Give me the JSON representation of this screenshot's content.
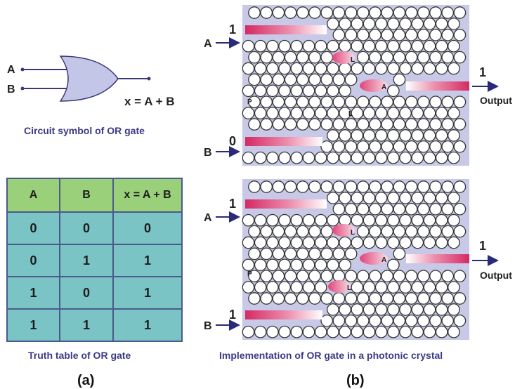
{
  "or_gate": {
    "input_a": "A",
    "input_b": "B",
    "expression": "x = A + B",
    "caption": "Circuit symbol of OR gate"
  },
  "truth_table": {
    "headers": [
      "A",
      "B",
      "x = A + B"
    ],
    "rows": [
      [
        "0",
        "0",
        "0"
      ],
      [
        "0",
        "1",
        "1"
      ],
      [
        "1",
        "0",
        "1"
      ],
      [
        "1",
        "1",
        "1"
      ]
    ],
    "caption": "Truth table of OR gate"
  },
  "panel_a_label": "(a)",
  "panel_b_label": "(b)",
  "crystal_caption": "Implementation of OR gate in a photonic crystal",
  "crystals": [
    {
      "input_a_value": "1",
      "input_b_value": "0",
      "output_value": "1",
      "input_a_label": "A",
      "input_b_label": "B",
      "output_label": "Output",
      "marker_p": "P",
      "marker_l1": "L",
      "marker_a": "A",
      "marker_l2": "L"
    },
    {
      "input_a_value": "1",
      "input_b_value": "1",
      "output_value": "1",
      "input_a_label": "A",
      "input_b_label": "B",
      "output_label": "Output",
      "marker_p": "P",
      "marker_l1": "L",
      "marker_a": "A",
      "marker_l2": "L"
    }
  ],
  "colors": {
    "crystal_bg": "#c7c9e6",
    "gate_fill": "#c4c6e8",
    "waveguide": "#d8336a",
    "arrow": "#2a2a7a",
    "table_header": "#9bd07a",
    "table_cell": "#7bc4c6"
  }
}
